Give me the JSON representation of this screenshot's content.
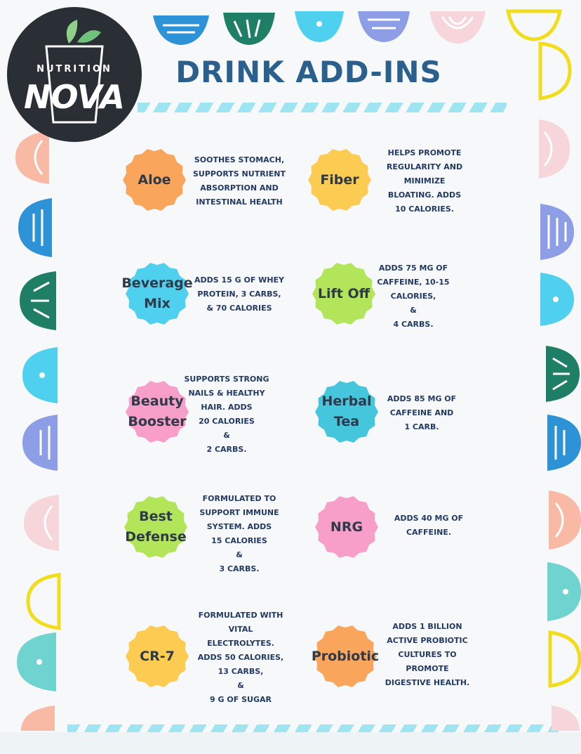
{
  "brand": {
    "line1": "NUTRITION",
    "line2": "NOVA"
  },
  "title": "DRINK ADD-INS",
  "colors": {
    "orange": "#f9a55b",
    "yellow": "#fbcb52",
    "cyan": "#4fd0ee",
    "lime": "#b3e55a",
    "pink": "#f79ec9",
    "teal": "#45c6dc",
    "blue": "#2e93d6",
    "green": "#1f7f66",
    "lavender": "#8e9ee6",
    "title": "#2a5f8e",
    "text": "#233a64"
  },
  "items": [
    {
      "name": "Aloe",
      "color": "#f9a55b",
      "description": "SOOTHES STOMACH,\nSUPPORTS NUTRIENT\nABSORPTION AND\nINTESTINAL HEALTH"
    },
    {
      "name": "Fiber",
      "color": "#fbcb52",
      "description": "HELPS PROMOTE\nREGULARITY AND\nMINIMIZE\nBLOATING. ADDS\n10 CALORIES."
    },
    {
      "name": "Beverage\nMix",
      "color": "#4fd0ee",
      "description": "ADDS 15 G OF WHEY\nPROTEIN, 3 CARBS,\n& 70 CALORIES"
    },
    {
      "name": "Lift Off",
      "color": "#b3e55a",
      "description": "ADDS 75 MG OF\nCAFFEINE, 10-15\nCALORIES,\n&\n4 CARBS."
    },
    {
      "name": "Beauty\nBooster",
      "color": "#f79ec9",
      "description": "SUPPORTS STRONG\nNAILS & HEALTHY\nHAIR. ADDS\n20 CALORIES\n&\n2 CARBS."
    },
    {
      "name": "Herbal\nTea",
      "color": "#45c6dc",
      "description": "ADDS 85 MG OF\nCAFFEINE AND\n1 CARB."
    },
    {
      "name": "Best\nDefense",
      "color": "#b3e55a",
      "description": "FORMULATED TO\nSUPPORT IMMUNE\nSYSTEM. ADDS\n15 CALORIES\n&\n3 CARBS."
    },
    {
      "name": "NRG",
      "color": "#f79ec9",
      "description": "ADDS 40 MG OF\nCAFFEINE."
    },
    {
      "name": "CR-7",
      "color": "#fbcb52",
      "description": "FORMULATED WITH\nVITAL\nELECTROLYTES.\nADDS 50 CALORIES,\n13 CARBS,\n&\n9 G OF SUGAR"
    },
    {
      "name": "Probiotic",
      "color": "#f9a55b",
      "description": "ADDS 1 BILLION\nACTIVE PROBIOTIC\nCULTURES TO\nPROMOTE\nDIGESTIVE HEALTH."
    }
  ]
}
